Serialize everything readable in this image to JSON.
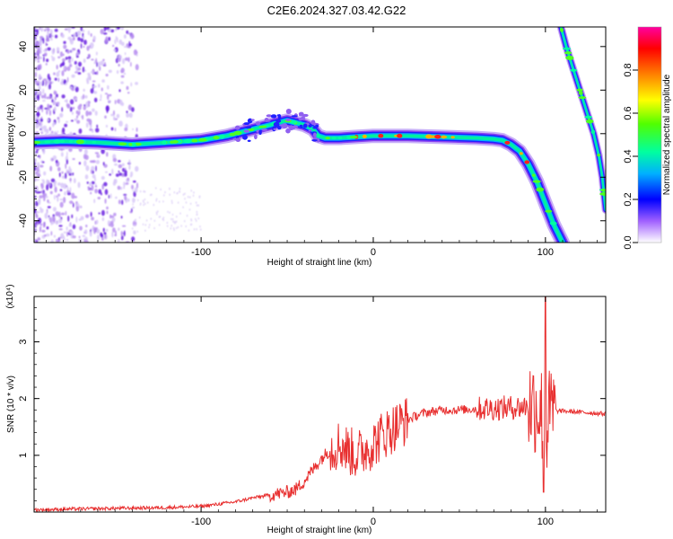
{
  "figure": {
    "title": "C2E6.2024.327.03.42.G22"
  },
  "chart_data": [
    {
      "type": "heatmap",
      "title": "C2E6.2024.327.03.42.G22",
      "xlabel": "Height of straight line (km)",
      "ylabel": "Frequency (Hz)",
      "xlim": [
        -197,
        135
      ],
      "ylim": [
        -50,
        49
      ],
      "x_ticks": [
        -100,
        0,
        100
      ],
      "x_tick_labels": [
        "-100",
        "0",
        "100"
      ],
      "y_ticks": [
        -40,
        -20,
        0,
        20,
        40
      ],
      "y_tick_labels": [
        "-40",
        "-20",
        "0",
        "20",
        "40"
      ],
      "grid": false,
      "colorbar": {
        "label": "Normalized spectral amplitude",
        "range": [
          0,
          1
        ],
        "ticks": [
          0.0,
          0.2,
          0.4,
          0.6,
          0.8
        ],
        "tick_labels": [
          "0.0",
          "0.2",
          "0.4",
          "0.6",
          "0.8"
        ],
        "colormap": [
          "#ffffff",
          "#a060ff",
          "#0000ff",
          "#00b0ff",
          "#00ffa0",
          "#50ff00",
          "#ffff00",
          "#ff8000",
          "#ff0000",
          "#ff00a0"
        ]
      },
      "ridges": [
        {
          "name": "",
          "x": [
            -197,
            -180,
            -160,
            -140,
            -120,
            -100,
            -85,
            -70,
            -60,
            -50,
            -45,
            -40,
            -35,
            -32,
            -28,
            -20,
            -10,
            0,
            10,
            20,
            40,
            60,
            70,
            75,
            80,
            85,
            90,
            95,
            100,
            105,
            110
          ],
          "y": [
            -4,
            -3.5,
            -4,
            -5,
            -4,
            -3,
            -1,
            2,
            4,
            6,
            5,
            4,
            2,
            -1,
            -2,
            -2,
            -1.5,
            -1,
            -1,
            -1,
            -1.5,
            -2,
            -2.5,
            -3,
            -5,
            -8,
            -14,
            -22,
            -32,
            -42,
            -50
          ]
        },
        {
          "name": "",
          "x": [
            109,
            112,
            116,
            120,
            124,
            128,
            131,
            133,
            135
          ],
          "y": [
            49,
            40,
            30,
            20,
            10,
            0,
            -10,
            -20,
            -35
          ]
        }
      ]
    },
    {
      "type": "line",
      "xlabel": "Height of straight line (km)",
      "ylabel": "SNR (10 * v/v)",
      "yscale_label": "(x10⁴)",
      "xlim": [
        -197,
        135
      ],
      "ylim": [
        0,
        3.8
      ],
      "x_ticks": [
        -100,
        0,
        100
      ],
      "x_tick_labels": [
        "-100",
        "0",
        "100"
      ],
      "y_ticks": [
        1,
        2,
        3
      ],
      "y_tick_labels": [
        "1",
        "2",
        "3"
      ],
      "grid": false,
      "color": "#e83030",
      "series": [
        {
          "name": "",
          "x": [
            -197,
            -180,
            -160,
            -140,
            -120,
            -100,
            -90,
            -80,
            -70,
            -60,
            -50,
            -45,
            -40,
            -35,
            -30,
            -25,
            -20,
            -15,
            -10,
            -5,
            0,
            5,
            10,
            15,
            20,
            25,
            30,
            40,
            50,
            60,
            70,
            80,
            85,
            90,
            95,
            98,
            100,
            101,
            103,
            106,
            110,
            115,
            120,
            125,
            130,
            135
          ],
          "y": [
            0.04,
            0.05,
            0.06,
            0.07,
            0.08,
            0.1,
            0.14,
            0.18,
            0.25,
            0.3,
            0.35,
            0.4,
            0.55,
            0.75,
            0.95,
            1.1,
            1.2,
            1.1,
            1.0,
            1.1,
            1.2,
            1.35,
            1.45,
            1.55,
            1.62,
            1.7,
            1.75,
            1.8,
            1.8,
            1.82,
            1.83,
            1.84,
            1.85,
            1.87,
            1.9,
            1.7,
            1.2,
            1.5,
            1.75,
            1.78,
            1.78,
            1.77,
            1.76,
            1.75,
            1.74,
            1.73
          ]
        }
      ]
    }
  ]
}
